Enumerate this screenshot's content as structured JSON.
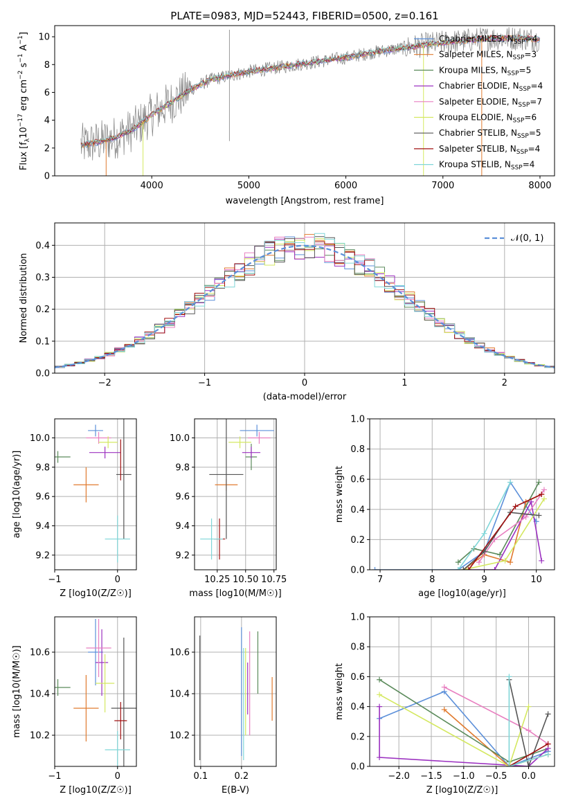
{
  "title": "PLATE=0983, MJD=52443, FIBERID=0500, z=0.161",
  "colors": {
    "axis": "#000000",
    "grid": "#b0b0b0",
    "data_gray": "#808080",
    "normal_curve": "#5b8fd9"
  },
  "series_colors": [
    "#5b8fd9",
    "#e07a2e",
    "#5a8a5a",
    "#9b30c0",
    "#e87fc0",
    "#d4e860",
    "#555555",
    "#a01010",
    "#7fd6d8"
  ],
  "chart_data": [
    {
      "id": "spectrum",
      "type": "line",
      "xlabel": "wavelength [Angstrom, rest frame]",
      "ylabel": "Flux [f_λ 10^-17 erg cm^-2 s^-1 A^-1]",
      "xlim": [
        3000,
        8150
      ],
      "ylim": [
        0,
        10.8
      ],
      "xticks": [
        "4000",
        "5000",
        "6000",
        "7000",
        "8000"
      ],
      "yticks": [
        "0",
        "2",
        "4",
        "6",
        "8",
        "10"
      ],
      "continuum": {
        "x": [
          3270,
          3500,
          3600,
          3800,
          4000,
          4200,
          4400,
          4600,
          4800,
          5000,
          5200,
          5500,
          5800,
          6000,
          6300,
          6600,
          6900,
          7200,
          7500,
          7800,
          8000
        ],
        "y": [
          2.2,
          2.5,
          2.7,
          3.3,
          4.4,
          5.3,
          6.2,
          6.9,
          7.2,
          7.5,
          7.7,
          8.0,
          8.3,
          8.5,
          8.9,
          9.2,
          9.5,
          9.7,
          9.9,
          9.9,
          9.8
        ]
      },
      "legend": [
        {
          "label": "Chabrier MILES, N",
          "sub": "SSP",
          "tail": "=4"
        },
        {
          "label": "Salpeter MILES, N",
          "sub": "SSP",
          "tail": "=3"
        },
        {
          "label": "Kroupa MILES, N",
          "sub": "SSP",
          "tail": "=5"
        },
        {
          "label": "Chabrier ELODIE, N",
          "sub": "SSP",
          "tail": "=4"
        },
        {
          "label": "Salpeter ELODIE, N",
          "sub": "SSP",
          "tail": "=7"
        },
        {
          "label": "Kroupa ELODIE, N",
          "sub": "SSP",
          "tail": "=6"
        },
        {
          "label": "Chabrier STELIB, N",
          "sub": "SSP",
          "tail": "=5"
        },
        {
          "label": "Salpeter STELIB, N",
          "sub": "SSP",
          "tail": "=4"
        },
        {
          "label": "Kroupa STELIB, N",
          "sub": "SSP",
          "tail": "=4"
        }
      ]
    },
    {
      "id": "residuals",
      "type": "histogram",
      "xlabel": "(data-model)/error",
      "ylabel": "Normed distribution",
      "xlim": [
        -2.5,
        2.5
      ],
      "ylim": [
        0,
        0.47
      ],
      "xticks": [
        "−2",
        "−1",
        "0",
        "1",
        "2"
      ],
      "yticks": [
        "0.0",
        "0.1",
        "0.2",
        "0.3",
        "0.4"
      ],
      "legend_label": "𝒩(0, 1)",
      "bins_n": 50,
      "grid": true
    },
    {
      "id": "Z_vs_age",
      "type": "errorbar",
      "xlabel": "Z [log10(Z/Z☉)]",
      "ylabel": "age [log10(age/yr)]",
      "xlim": [
        -1.0,
        0.3
      ],
      "ylim": [
        9.1,
        10.13
      ],
      "xticks": [
        "−1",
        "0"
      ],
      "yticks": [
        "9.2",
        "9.4",
        "9.6",
        "9.8",
        "10.0"
      ],
      "points": [
        {
          "x": -0.35,
          "xerr": 0.12,
          "y": 10.05,
          "yerr": 0.0
        },
        {
          "x": -0.5,
          "xerr": 0.2,
          "y": 9.68,
          "yerr": 0.08
        },
        {
          "x": -0.95,
          "xerr": 0.2,
          "y": 9.87,
          "yerr": 0.0
        },
        {
          "x": -0.2,
          "xerr": 0.25,
          "y": 9.9,
          "yerr": 0.0
        },
        {
          "x": -0.3,
          "xerr": 0.2,
          "y": 10.0,
          "yerr": 0.0
        },
        {
          "x": -0.15,
          "xerr": 0.15,
          "y": 9.97,
          "yerr": 0.0
        },
        {
          "x": 0.1,
          "xerr": 0.12,
          "y": 9.75,
          "yerr": 0.4
        },
        {
          "x": 0.05,
          "xerr": 0.0,
          "y": 9.85,
          "yerr": 0.1
        },
        {
          "x": 0.0,
          "xerr": 0.2,
          "y": 9.31,
          "yerr": 0.12
        }
      ]
    },
    {
      "id": "mass_vs_age",
      "type": "errorbar",
      "xlabel": "mass [log10(M/M☉)]",
      "ylabel": "",
      "xlim": [
        10.05,
        10.77
      ],
      "ylim": [
        9.1,
        10.13
      ],
      "xticks": [
        "10.25",
        "10.50",
        "10.75"
      ],
      "yticks": [
        "9.2",
        "9.4",
        "9.6",
        "9.8",
        "10.0"
      ],
      "points": [
        {
          "x": 10.6,
          "xerr": 0.15,
          "y": 10.05,
          "yerr": 0.0
        },
        {
          "x": 10.33,
          "xerr": 0.1,
          "y": 9.68,
          "yerr": 0.0
        },
        {
          "x": 10.55,
          "xerr": 0.05,
          "y": 9.87,
          "yerr": 0.05
        },
        {
          "x": 10.55,
          "xerr": 0.08,
          "y": 9.9,
          "yerr": 0.0
        },
        {
          "x": 10.62,
          "xerr": 0.1,
          "y": 10.0,
          "yerr": 0.0
        },
        {
          "x": 10.45,
          "xerr": 0.1,
          "y": 9.97,
          "yerr": 0.0
        },
        {
          "x": 10.33,
          "xerr": 0.15,
          "y": 9.75,
          "yerr": 0.4
        },
        {
          "x": 10.27,
          "xerr": 0.05,
          "y": 9.31,
          "yerr": 0.1
        },
        {
          "x": 10.2,
          "xerr": 0.1,
          "y": 9.31,
          "yerr": 0.1
        }
      ]
    },
    {
      "id": "age_mass_weight",
      "type": "line",
      "xlabel": "age [log10(age/yr)]",
      "ylabel": "mass weight",
      "xlim": [
        6.8,
        10.35
      ],
      "ylim": [
        0,
        1.0
      ],
      "xticks": [
        "7",
        "8",
        "9",
        "10"
      ],
      "yticks": [
        "0.0",
        "0.2",
        "0.4",
        "0.6",
        "0.8",
        "1.0"
      ],
      "grid": true
    },
    {
      "id": "Z_vs_mass",
      "type": "errorbar",
      "xlabel": "Z [log10(Z/Z☉)]",
      "ylabel": "mass [log10(M/M☉)]",
      "xlim": [
        -1.0,
        0.3
      ],
      "ylim": [
        10.05,
        10.77
      ],
      "xticks": [
        "−1",
        "0"
      ],
      "yticks": [
        "10.2",
        "10.4",
        "10.6"
      ]
    },
    {
      "id": "EBV_vs_mass",
      "type": "errorbar",
      "xlabel": "E(B-V)",
      "ylabel": "",
      "xlim": [
        0.085,
        0.285
      ],
      "ylim": [
        10.05,
        10.77
      ],
      "xticks": [
        "0.1",
        "0.2"
      ],
      "yticks": [
        "10.2",
        "10.4",
        "10.6"
      ]
    },
    {
      "id": "Z_mass_weight",
      "type": "line",
      "xlabel": "Z [log10(Z/Z☉)]",
      "ylabel": "mass weight",
      "xlim": [
        -2.45,
        0.4
      ],
      "ylim": [
        0,
        1.0
      ],
      "xticks": [
        "−2.0",
        "−1.5",
        "−1.0",
        "−0.5",
        "0.0"
      ],
      "yticks": [
        "0.0",
        "0.2",
        "0.4",
        "0.6",
        "0.8",
        "1.0"
      ],
      "grid": true
    }
  ]
}
